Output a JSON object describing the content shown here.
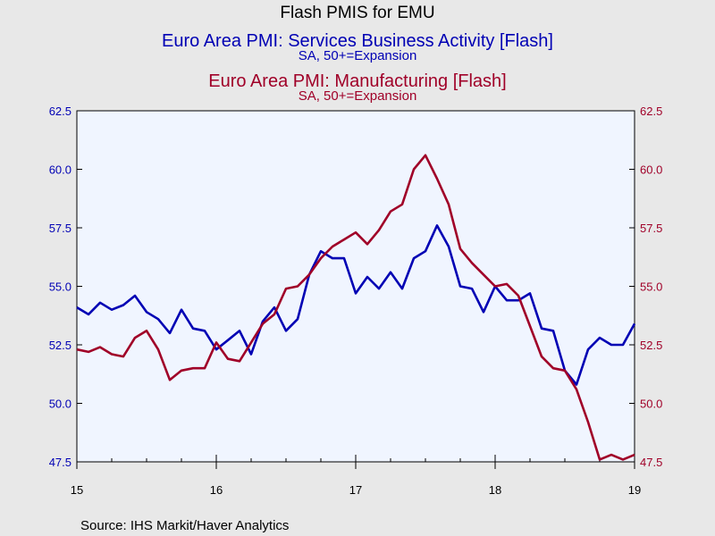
{
  "chart_data": {
    "type": "line",
    "title": "Flash PMIS for EMU",
    "left_axis": {
      "title": "Euro Area PMI: Services Business Activity [Flash]",
      "subtitle": "SA, 50+=Expansion",
      "ylim": [
        47.5,
        62.5
      ],
      "ticks": [
        "62.5",
        "60.0",
        "57.5",
        "55.0",
        "52.5",
        "50.0",
        "47.5"
      ],
      "color": "#0000b4"
    },
    "right_axis": {
      "title": "Euro Area PMI: Manufacturing [Flash]",
      "subtitle": "SA, 50+=Expansion",
      "ylim": [
        47.5,
        62.5
      ],
      "ticks": [
        "62.5",
        "60.0",
        "57.5",
        "55.0",
        "52.5",
        "50.0",
        "47.5"
      ],
      "color": "#a00028"
    },
    "x_ticks": [
      "15",
      "16",
      "17",
      "18",
      "19"
    ],
    "xlim": [
      2015.0,
      2019.0
    ],
    "x_start": 2015.0,
    "x_step": 0.083333,
    "series": [
      {
        "axis": "left",
        "color": "#0000b4",
        "values": [
          54.1,
          53.8,
          54.3,
          54.0,
          54.2,
          54.6,
          53.9,
          53.6,
          53.0,
          54.0,
          53.2,
          53.1,
          52.3,
          52.7,
          53.1,
          52.1,
          53.5,
          54.1,
          53.1,
          53.6,
          55.5,
          56.5,
          56.2,
          56.2,
          54.7,
          55.4,
          54.9,
          55.6,
          54.9,
          56.2,
          56.5,
          57.6,
          56.7,
          55.0,
          54.9,
          53.9,
          55.0,
          54.4,
          54.4,
          54.7,
          53.2,
          53.1,
          51.4,
          50.8,
          52.3,
          52.8,
          52.5,
          52.5,
          53.4
        ]
      },
      {
        "axis": "right",
        "color": "#a00028",
        "values": [
          52.3,
          52.2,
          52.4,
          52.1,
          52.0,
          52.8,
          53.1,
          52.3,
          51.0,
          51.4,
          51.5,
          51.5,
          52.6,
          51.9,
          51.8,
          52.6,
          53.4,
          53.8,
          54.9,
          55.0,
          55.5,
          56.2,
          56.7,
          57.0,
          57.3,
          56.8,
          57.4,
          58.2,
          58.5,
          60.0,
          60.6,
          59.6,
          58.5,
          56.6,
          56.0,
          55.5,
          55.0,
          55.1,
          54.6,
          53.3,
          52.0,
          51.5,
          51.4,
          50.6,
          49.2,
          47.6,
          47.8,
          47.6,
          47.8
        ]
      }
    ],
    "source": "Source:  IHS Markit/Haver Analytics"
  }
}
